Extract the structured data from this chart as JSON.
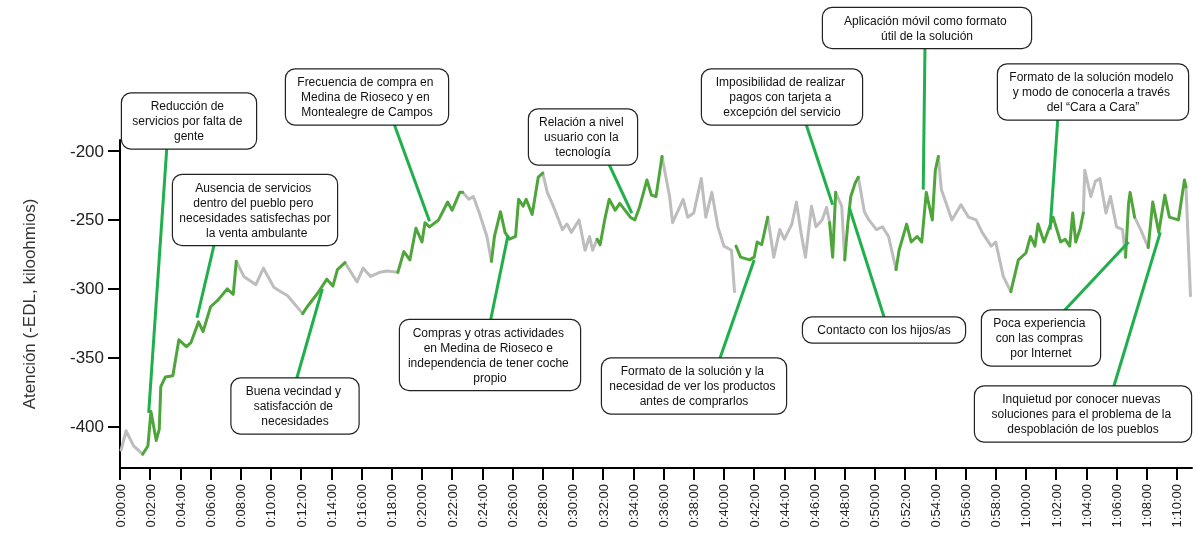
{
  "chart_data": {
    "type": "line",
    "ylabel": "Atención (-EDL, kiloohmios)",
    "xlim": [
      0,
      71
    ],
    "ylim": [
      -430,
      -192
    ],
    "yticks": [
      -400,
      -350,
      -300,
      -250,
      -200
    ],
    "xticks": [
      {
        "value": 0,
        "label": "0:00:00"
      },
      {
        "value": 2,
        "label": "0:02:00"
      },
      {
        "value": 4,
        "label": "0:04:00"
      },
      {
        "value": 6,
        "label": "0:06:00"
      },
      {
        "value": 8,
        "label": "0:08:00"
      },
      {
        "value": 10,
        "label": "0:10:00"
      },
      {
        "value": 12,
        "label": "0:12:00"
      },
      {
        "value": 14,
        "label": "0:14:00"
      },
      {
        "value": 16,
        "label": "0:16:00"
      },
      {
        "value": 18,
        "label": "0:18:00"
      },
      {
        "value": 20,
        "label": "0:20:00"
      },
      {
        "value": 22,
        "label": "0:22:00"
      },
      {
        "value": 24,
        "label": "0:24:00"
      },
      {
        "value": 26,
        "label": "0:26:00"
      },
      {
        "value": 28,
        "label": "0:28:00"
      },
      {
        "value": 30,
        "label": "0:30:00"
      },
      {
        "value": 32,
        "label": "0:32:00"
      },
      {
        "value": 34,
        "label": "0:34:00"
      },
      {
        "value": 36,
        "label": "0:36:00"
      },
      {
        "value": 38,
        "label": "0:38:00"
      },
      {
        "value": 40,
        "label": "0:40:00"
      },
      {
        "value": 42,
        "label": "0:42:00"
      },
      {
        "value": 44,
        "label": "0:44:00"
      },
      {
        "value": 46,
        "label": "0:46:00"
      },
      {
        "value": 48,
        "label": "0:48:00"
      },
      {
        "value": 50,
        "label": "0:50:00"
      },
      {
        "value": 52,
        "label": "0:52:00"
      },
      {
        "value": 54,
        "label": "0:54:00"
      },
      {
        "value": 56,
        "label": "0:56:00"
      },
      {
        "value": 58,
        "label": "0:58:00"
      },
      {
        "value": 60,
        "label": "1:00:00"
      },
      {
        "value": 62,
        "label": "1:02:00"
      },
      {
        "value": 64,
        "label": "1:04:00"
      },
      {
        "value": 66,
        "label": "1:06:00"
      },
      {
        "value": 68,
        "label": "1:08:00"
      },
      {
        "value": 70,
        "label": "1:10:00"
      }
    ],
    "series": [
      {
        "color": "#bdbdbd",
        "x": [
          0.07,
          0.4,
          0.9,
          1.5,
          4,
          7.7,
          8.2,
          9.0,
          9.5,
          10.2,
          11.1,
          12.1,
          13.5,
          14.9,
          15.7,
          16.1,
          16.6,
          17.2,
          17.7,
          18.4,
          20,
          22.7,
          23.1,
          23.4,
          23.8,
          24.3,
          24.6,
          26,
          28.0,
          28.3,
          28.7,
          29.3,
          29.6,
          29.9,
          30.4,
          30.8,
          31.1,
          31.3,
          31.6,
          33,
          35.9,
          36.4,
          36.6,
          37.3,
          37.6,
          38.0,
          38.5,
          38.8,
          39.2,
          39.6,
          40.0,
          40.5,
          40.7,
          42,
          42.9,
          43.3,
          43.7,
          44.0,
          44.5,
          44.8,
          45.1,
          45.4,
          45.8,
          46.1,
          46.5,
          46.8,
          47.0,
          47.2,
          47.4,
          47.8,
          48.0,
          48.5,
          48.9,
          49.3,
          49.6,
          50.1,
          50.5,
          50.9,
          51.4,
          53,
          54.2,
          54.4,
          55.1,
          55.7,
          56.2,
          56.7,
          57.1,
          57.7,
          58.0,
          58.5,
          59.0,
          61,
          63.8,
          63.9,
          64.3,
          64.6,
          64.9,
          65.3,
          65.6,
          66.0,
          66.4,
          66.6,
          66.7,
          67.2,
          67.6,
          68.1,
          69,
          70.6,
          70.9
        ],
        "values": [
          -417,
          -403,
          -414,
          -420,
          null,
          -280,
          -291,
          -297,
          -285,
          -299,
          -305,
          -318,
          null,
          -281,
          -295,
          -285,
          -291,
          -288,
          -287,
          -288,
          null,
          -230,
          -235,
          -233,
          -245,
          -262,
          -280,
          null,
          -216,
          -230,
          -240,
          -257,
          -253,
          -259,
          -250,
          -272,
          -262,
          -272,
          -264,
          null,
          -204,
          -233,
          -252,
          -235,
          -248,
          -245,
          -220,
          -248,
          -230,
          -255,
          -269,
          -272,
          -302,
          null,
          -248,
          -277,
          -257,
          -264,
          -253,
          -237,
          -259,
          -277,
          -240,
          -255,
          -250,
          -241,
          -252,
          null,
          -230,
          -240,
          -279,
          null,
          -219,
          -244,
          -250,
          -257,
          -255,
          -262,
          -286,
          null,
          -204,
          -228,
          -250,
          -239,
          -248,
          -250,
          -259,
          -269,
          -266,
          -291,
          -302,
          null,
          -245,
          -214,
          -233,
          -222,
          -220,
          -245,
          -233,
          -255,
          -257,
          -277,
          null,
          -248,
          -257,
          -270,
          null,
          -226,
          -305
        ]
      },
      {
        "color": "#4ea63a",
        "x": [
          1.5,
          1.85,
          2.05,
          2.4,
          2.6,
          2.7,
          3.0,
          3.5,
          3.9,
          4.4,
          4.7,
          5.2,
          5.5,
          6.0,
          6.5,
          7.1,
          7.5,
          7.7,
          10,
          12.1,
          12.4,
          13.1,
          13.7,
          14.1,
          14.4,
          14.9,
          16,
          18.4,
          18.8,
          19.2,
          19.6,
          20.0,
          20.2,
          20.5,
          21.1,
          21.7,
          22.0,
          22.5,
          22.7,
          23.5,
          24.6,
          24.8,
          25.2,
          25.5,
          25.8,
          26.2,
          26.4,
          26.7,
          26.9,
          27.3,
          27.7,
          28.0,
          30,
          31.6,
          31.8,
          32.1,
          32.4,
          32.8,
          33.1,
          33.8,
          34.1,
          34.4,
          34.9,
          35.2,
          35.5,
          35.9,
          38,
          40.7,
          40.8,
          41.1,
          41.7,
          42.0,
          42.2,
          42.5,
          42.9,
          45,
          47.0,
          47.2,
          47.4,
          47.6,
          48.0,
          48.2,
          48.4,
          48.7,
          48.9,
          50,
          51.4,
          51.6,
          52.1,
          52.4,
          52.8,
          53.1,
          53.4,
          53.8,
          54.0,
          54.2,
          56,
          59.0,
          59.5,
          60.0,
          60.3,
          60.6,
          60.8,
          61.2,
          61.5,
          61.8,
          62.3,
          62.6,
          62.9,
          63.1,
          63.3,
          63.6,
          63.8,
          65,
          66.6,
          66.8,
          66.9,
          67.2,
          67.8,
          68.1,
          68.4,
          68.8,
          69.2,
          69.5,
          70.1,
          70.5,
          70.6
        ],
        "values": [
          -420,
          -414,
          -389,
          -410,
          -402,
          -371,
          -364,
          -363,
          -337,
          -342,
          -339,
          -324,
          -331,
          -313,
          -308,
          -300,
          -304,
          -280,
          null,
          -318,
          -313,
          -303,
          -293,
          -298,
          -286,
          -281,
          null,
          -288,
          -273,
          -279,
          -256,
          -266,
          -252,
          -255,
          -250,
          -237,
          -243,
          -230,
          -230,
          null,
          -280,
          -262,
          -244,
          -259,
          -264,
          -262,
          -235,
          -240,
          -235,
          -246,
          -219,
          -216,
          null,
          -264,
          -268,
          -250,
          -235,
          -243,
          -238,
          -248,
          -250,
          -241,
          -221,
          -232,
          -233,
          -204,
          null,
          null,
          -269,
          -277,
          -279,
          -277,
          -266,
          -268,
          -248,
          null,
          -252,
          -277,
          -230,
          null,
          -279,
          -253,
          -233,
          -223,
          -219,
          null,
          -286,
          -272,
          -253,
          -266,
          -262,
          -266,
          -230,
          -250,
          -214,
          -204,
          null,
          -302,
          -279,
          -274,
          -262,
          -269,
          -253,
          -266,
          -257,
          -248,
          -266,
          -264,
          -269,
          -245,
          -266,
          -256,
          -245,
          null,
          -277,
          -238,
          -230,
          -248,
          null,
          -270,
          -237,
          -259,
          -232,
          -248,
          -250,
          -221,
          -226
        ]
      }
    ],
    "annotations": [
      {
        "text": "Reducción de servicios por falta de gente",
        "x": 1.9,
        "y": -390
      },
      {
        "text": "Ausencia de servicios dentro del pueblo pero necesidades satisfechas por la venta ambulante",
        "x": 5.1,
        "y": -321
      },
      {
        "text": "Buena vecindad y satisfacción de necesidades",
        "x": 13.4,
        "y": -300
      },
      {
        "text": "Frecuencia de compra en Medina de Rioseco y en Montealegre de Campos",
        "x": 20.5,
        "y": -251
      },
      {
        "text": "Compras y otras actividades en Medina de Rioseco e independencia de tener coche propio",
        "x": 25.7,
        "y": -261
      },
      {
        "text": "Relación a nivel usuario con la tecnología",
        "x": 33.9,
        "y": -245
      },
      {
        "text": "Formato de la solución y la necesidad de ver los productos antes de comprarlos",
        "x": 42.0,
        "y": -279
      },
      {
        "text": "Imposibilidad de realizar pagos con tarjeta a excepción del servicio",
        "x": 47.2,
        "y": -239
      },
      {
        "text": "Contacto con los hijos/as",
        "x": 48.3,
        "y": -241
      },
      {
        "text": "Aplicación móvil como formato útil de la solución",
        "x": 53.2,
        "y": -228
      },
      {
        "text": "Formato de la solución modelo y modo de conocerla a través del “Cara a Cara”",
        "x": 61.6,
        "y": -257
      },
      {
        "text": "Poca experiencia con las compras por Internet",
        "x": 66.8,
        "y": -266
      },
      {
        "text": "Inquietud por conocer nuevas soluciones para el problema de la despoblación de los pueblos",
        "x": 68.9,
        "y": -259
      }
    ]
  }
}
